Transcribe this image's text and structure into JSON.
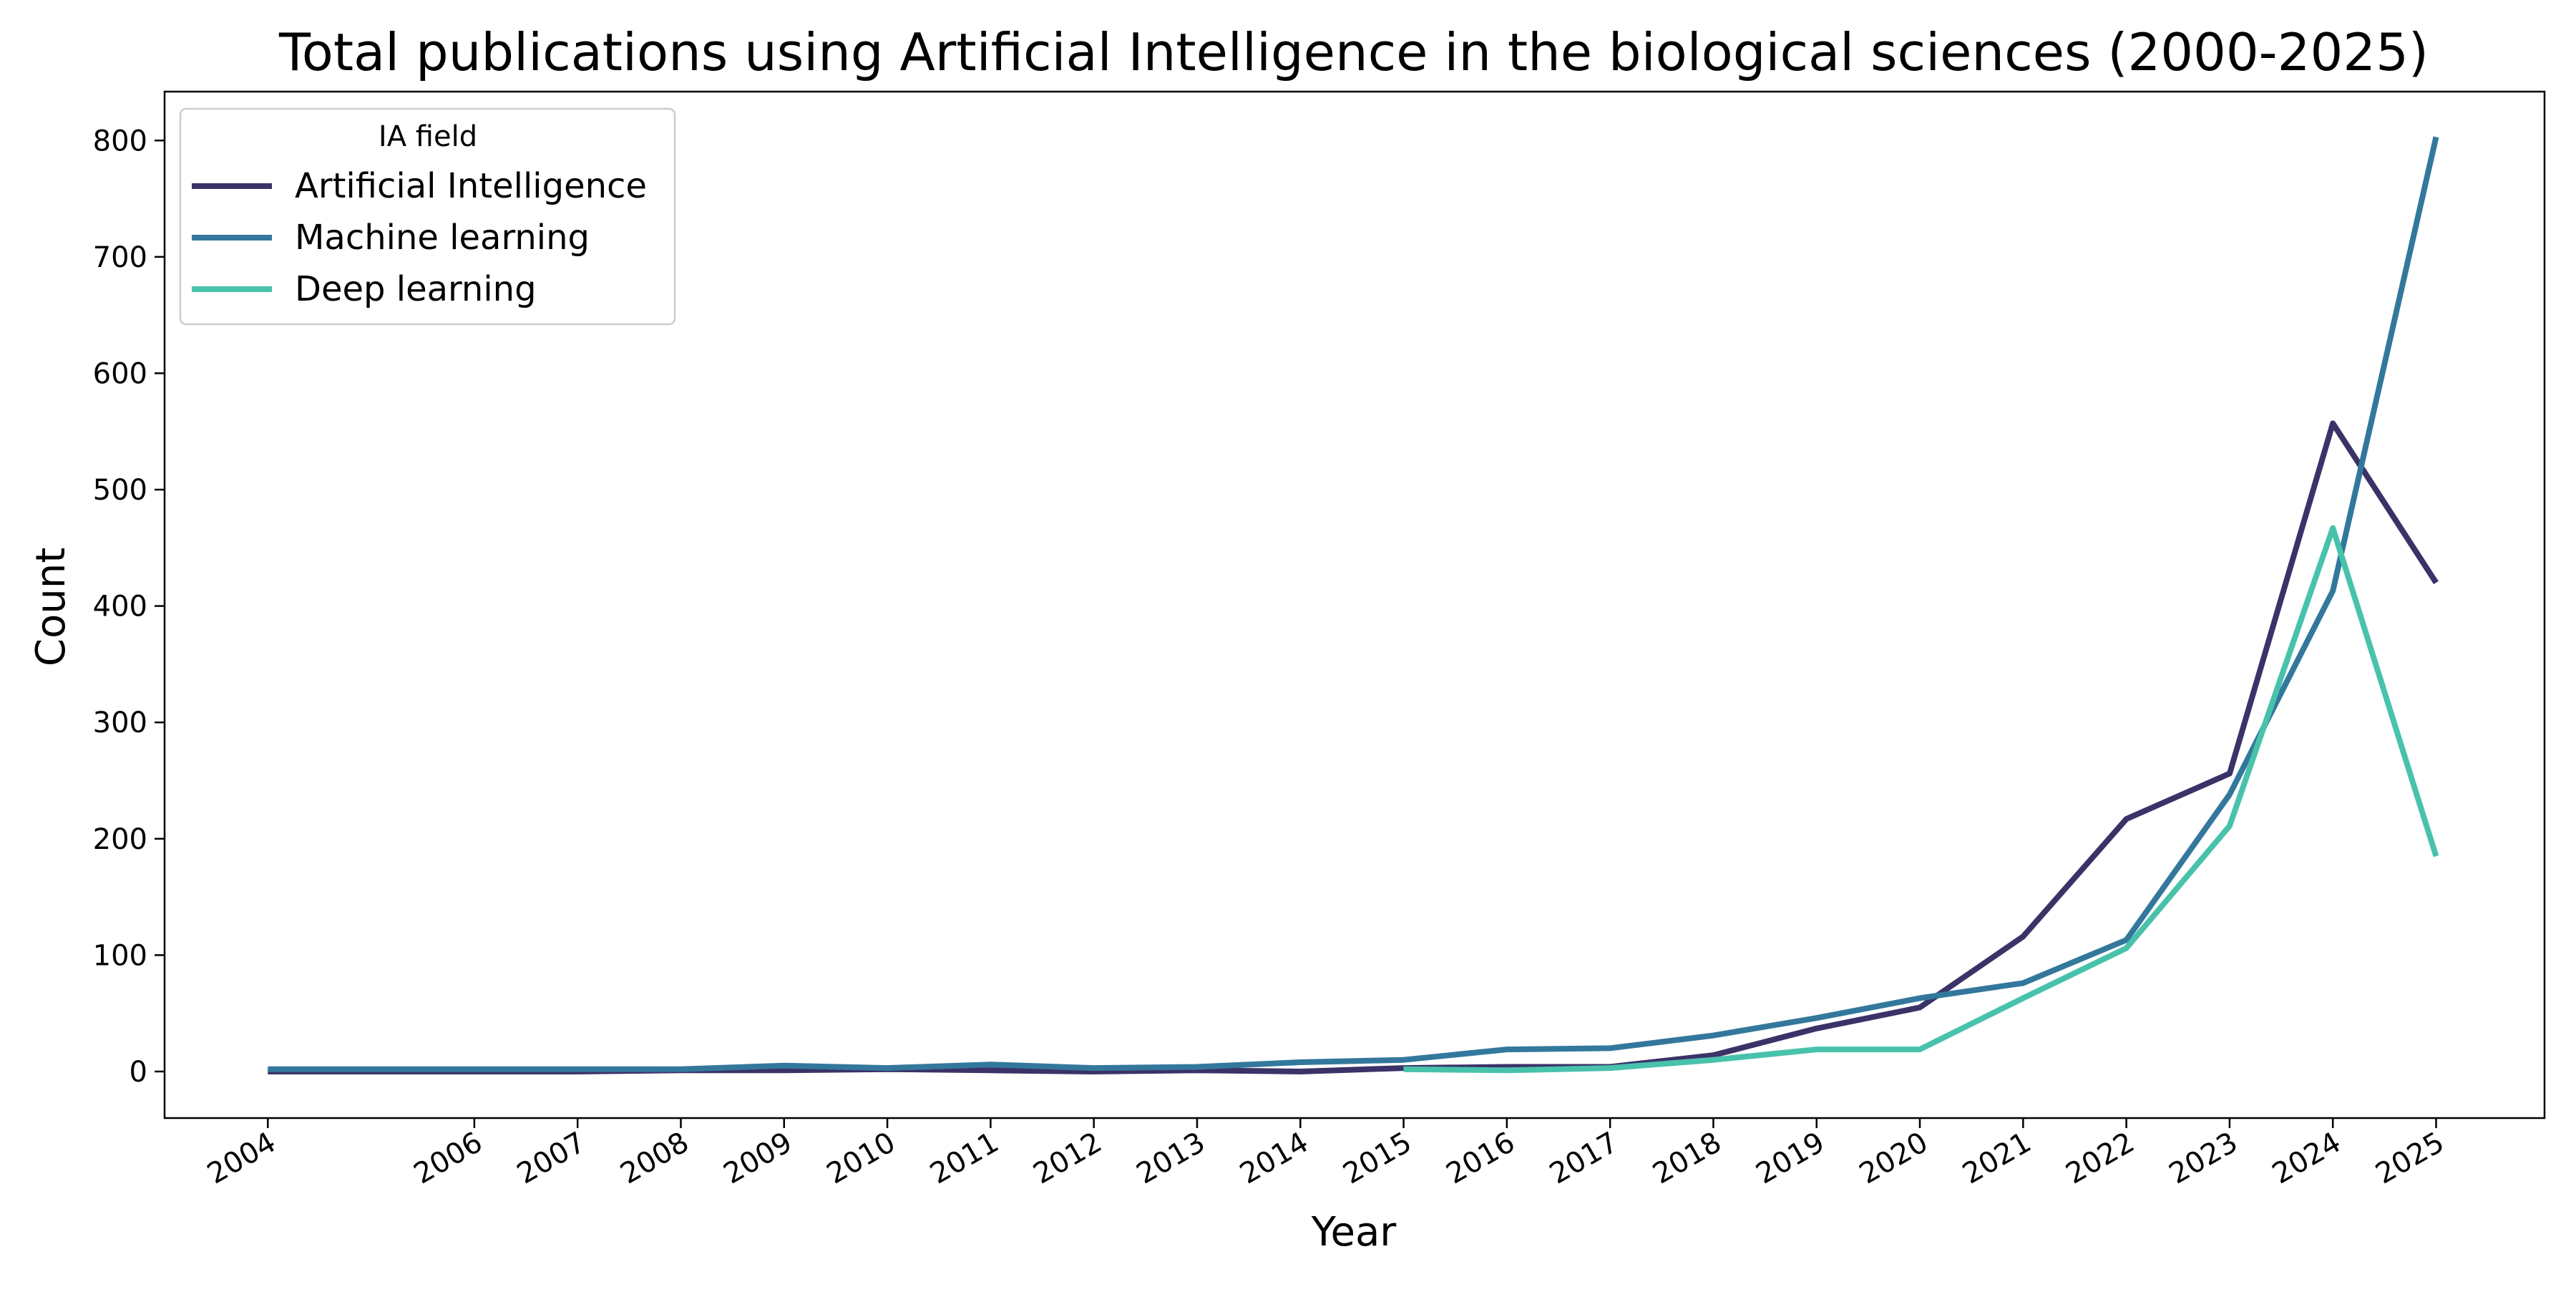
{
  "chart_data": {
    "type": "line",
    "title": "Total publications using Artificial Intelligence in the biological sciences (2000-2025)",
    "xlabel": "Year",
    "ylabel": "Count",
    "xlim": [
      2003.0,
      2026.05
    ],
    "ylim": [
      -40,
      842
    ],
    "x_ticks": [
      2004,
      2006,
      2007,
      2008,
      2009,
      2010,
      2011,
      2012,
      2013,
      2014,
      2015,
      2016,
      2017,
      2018,
      2019,
      2020,
      2021,
      2022,
      2023,
      2024,
      2025
    ],
    "y_ticks": [
      0,
      100,
      200,
      300,
      400,
      500,
      600,
      700,
      800
    ],
    "grid": false,
    "legend": {
      "title": "IA field",
      "position": "top-left"
    },
    "series": [
      {
        "name": "Artificial Intelligence",
        "color": "#3b3268",
        "x": [
          2004,
          2006,
          2007,
          2008,
          2009,
          2010,
          2011,
          2012,
          2013,
          2014,
          2015,
          2016,
          2017,
          2018,
          2019,
          2020,
          2021,
          2022,
          2023,
          2024,
          2025
        ],
        "values": [
          0,
          0,
          0,
          1,
          1,
          2,
          1,
          0,
          1,
          0,
          3,
          4,
          4,
          14,
          37,
          55,
          116,
          217,
          256,
          557,
          420
        ]
      },
      {
        "name": "Machine learning",
        "color": "#33789c",
        "x": [
          2004,
          2006,
          2007,
          2008,
          2009,
          2010,
          2011,
          2012,
          2013,
          2014,
          2015,
          2016,
          2017,
          2018,
          2019,
          2020,
          2021,
          2022,
          2023,
          2024,
          2025
        ],
        "values": [
          2,
          2,
          2,
          2,
          5,
          3,
          6,
          3,
          4,
          8,
          10,
          19,
          20,
          31,
          46,
          63,
          76,
          113,
          238,
          413,
          803
        ]
      },
      {
        "name": "Deep learning",
        "color": "#48c2ab",
        "x": [
          2015,
          2016,
          2017,
          2018,
          2019,
          2020,
          2021,
          2022,
          2023,
          2024,
          2025
        ],
        "values": [
          2,
          1,
          3,
          10,
          19,
          19,
          63,
          106,
          211,
          467,
          185
        ]
      }
    ]
  }
}
